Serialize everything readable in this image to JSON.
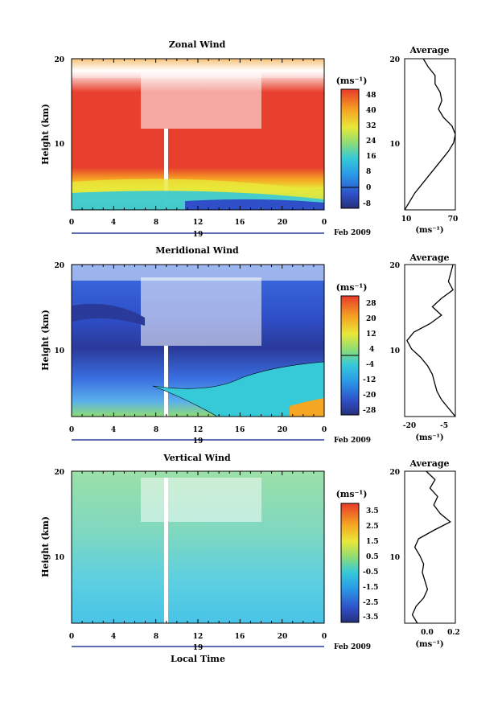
{
  "figure": {
    "date_label": "Feb 2009",
    "xlabel": "Local Time",
    "day_label": "19",
    "ylabel": "Height (km)",
    "unit_label": "(ms⁻¹)",
    "avg_title": "Average",
    "avg_unit_label": "(ms⁻¹)"
  },
  "panels": [
    {
      "title": "Zonal Wind",
      "colorbar_ticks": [
        "48",
        "40",
        "32",
        "24",
        "16",
        "8",
        "0",
        "-8"
      ],
      "avg_xticks": [
        "10",
        "70"
      ],
      "yticks": [
        "20",
        "10"
      ],
      "xticks": [
        "0",
        "4",
        "8",
        "12",
        "16",
        "20",
        "0"
      ]
    },
    {
      "title": "Meridional Wind",
      "colorbar_ticks": [
        "28",
        "20",
        "12",
        "4",
        "-4",
        "-12",
        "-20",
        "-28"
      ],
      "avg_xticks": [
        "-20",
        "-5"
      ],
      "yticks": [
        "20",
        "10"
      ],
      "xticks": [
        "0",
        "4",
        "8",
        "12",
        "16",
        "20",
        "0"
      ]
    },
    {
      "title": "Vertical Wind",
      "colorbar_ticks": [
        "3.5",
        "2.5",
        "1.5",
        "0.5",
        "-0.5",
        "-1.5",
        "-2.5",
        "-3.5"
      ],
      "avg_xticks": [
        "0.0",
        "0.2"
      ],
      "yticks": [
        "20",
        "10"
      ],
      "xticks": [
        "0",
        "4",
        "8",
        "12",
        "16",
        "20",
        "0"
      ]
    }
  ],
  "chart_data": [
    {
      "type": "heatmap",
      "title": "Zonal Wind",
      "x": [
        0,
        4,
        8,
        12,
        16,
        20,
        24
      ],
      "xlabel": "Local Time",
      "ylabel": "Height (km)",
      "xlim": [
        0,
        24
      ],
      "ylim": [
        2,
        20
      ],
      "color_range": [
        -8,
        52
      ],
      "colorbar_ticks": [
        48,
        40,
        32,
        24,
        16,
        8,
        0,
        -8
      ],
      "description_levels": "strong westerly (red) 5-16 km, weak near 2-3 km, data gaps above 14 km"
    },
    {
      "type": "line",
      "title": "Average",
      "xlim": [
        10,
        70
      ],
      "ylim": [
        2,
        20
      ],
      "series": [
        {
          "x": [
            10,
            16,
            22,
            30,
            38,
            46,
            54,
            62,
            68,
            70,
            66,
            56,
            50,
            54,
            52,
            46,
            46,
            38,
            32
          ],
          "y": [
            2,
            3,
            4,
            5,
            6,
            7,
            8,
            9,
            10,
            11,
            12,
            13,
            14,
            15,
            16,
            17,
            18,
            19,
            20
          ]
        }
      ]
    },
    {
      "type": "heatmap",
      "title": "Meridional Wind",
      "x": [
        0,
        4,
        8,
        12,
        16,
        20,
        24
      ],
      "xlabel": "Local Time",
      "ylabel": "Height (km)",
      "xlim": [
        0,
        24
      ],
      "ylim": [
        2,
        20
      ],
      "color_range": [
        -32,
        32
      ],
      "colorbar_ticks": [
        28,
        20,
        12,
        4,
        -4,
        -12,
        -20,
        -28
      ]
    },
    {
      "type": "line",
      "title": "Average",
      "xlim": [
        -24,
        -2
      ],
      "ylim": [
        2,
        20
      ],
      "series": [
        {
          "x": [
            -2,
            -5,
            -8,
            -10,
            -11,
            -12,
            -14,
            -17,
            -21,
            -23,
            -20,
            -13,
            -8,
            -12,
            -8,
            -3,
            -5,
            -4,
            -3
          ],
          "y": [
            2,
            3,
            4,
            5,
            6,
            7,
            8,
            9,
            10,
            11,
            12,
            13,
            14,
            15,
            16,
            17,
            18,
            19,
            20
          ]
        }
      ]
    },
    {
      "type": "heatmap",
      "title": "Vertical Wind",
      "x": [
        0,
        4,
        8,
        12,
        16,
        20,
        24
      ],
      "xlabel": "Local Time",
      "ylabel": "Height (km)",
      "xlim": [
        0,
        24
      ],
      "ylim": [
        2,
        20
      ],
      "color_range": [
        -4,
        4
      ],
      "colorbar_ticks": [
        3.5,
        2.5,
        1.5,
        0.5,
        -0.5,
        -1.5,
        -2.5,
        -3.5
      ]
    },
    {
      "type": "line",
      "title": "Average",
      "xlim": [
        -0.2,
        0.2
      ],
      "ylim": [
        2,
        20
      ],
      "series": [
        {
          "x": [
            -0.1,
            -0.14,
            -0.11,
            -0.05,
            -0.02,
            -0.04,
            -0.06,
            -0.05,
            -0.08,
            -0.12,
            -0.09,
            0.03,
            0.16,
            0.08,
            0.03,
            0.06,
            0.0,
            0.04,
            -0.03
          ],
          "y": [
            2,
            3,
            4,
            5,
            6,
            7,
            8,
            9,
            10,
            11,
            12,
            13,
            14,
            15,
            16,
            17,
            18,
            19,
            20
          ]
        }
      ]
    }
  ]
}
